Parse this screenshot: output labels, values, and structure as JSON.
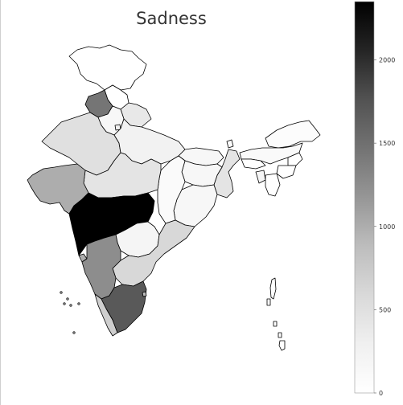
{
  "chart_data": {
    "type": "choropleth",
    "title": "Sadness",
    "colormap": "Greys",
    "colorbar": {
      "min": 0,
      "max": 2350,
      "ticks": [
        0,
        500,
        1000,
        1500,
        2000
      ],
      "tick_labels": [
        "0",
        "500",
        "1000",
        "1500",
        "2000"
      ]
    },
    "regions": [
      {
        "name": "Jammu and Kashmir",
        "value": 0
      },
      {
        "name": "Himachal Pradesh",
        "value": 0
      },
      {
        "name": "Punjab",
        "value": 1450
      },
      {
        "name": "Uttarakhand",
        "value": 400
      },
      {
        "name": "Haryana",
        "value": 150
      },
      {
        "name": "Delhi",
        "value": 300
      },
      {
        "name": "Rajasthan",
        "value": 500
      },
      {
        "name": "Uttar Pradesh",
        "value": 250
      },
      {
        "name": "Bihar",
        "value": 150
      },
      {
        "name": "Sikkim",
        "value": 50
      },
      {
        "name": "Arunachal Pradesh",
        "value": 50
      },
      {
        "name": "Assam",
        "value": 100
      },
      {
        "name": "Nagaland",
        "value": 0
      },
      {
        "name": "Manipur",
        "value": 0
      },
      {
        "name": "Mizoram",
        "value": 0
      },
      {
        "name": "Tripura",
        "value": 200
      },
      {
        "name": "Meghalaya",
        "value": 0
      },
      {
        "name": "West Bengal",
        "value": 450
      },
      {
        "name": "Jharkhand",
        "value": 150
      },
      {
        "name": "Odisha",
        "value": 150
      },
      {
        "name": "Chhattisgarh",
        "value": 100
      },
      {
        "name": "Madhya Pradesh",
        "value": 450
      },
      {
        "name": "Gujarat",
        "value": 1000
      },
      {
        "name": "Maharashtra",
        "value": 2350
      },
      {
        "name": "Telangana",
        "value": 200
      },
      {
        "name": "Andhra Pradesh",
        "value": 600
      },
      {
        "name": "Karnataka",
        "value": 1250
      },
      {
        "name": "Goa",
        "value": 1000
      },
      {
        "name": "Kerala",
        "value": 700
      },
      {
        "name": "Tamil Nadu",
        "value": 1700
      },
      {
        "name": "Puducherry",
        "value": 900
      },
      {
        "name": "Andaman and Nicobar Islands",
        "value": 0
      },
      {
        "name": "Lakshadweep",
        "value": 0
      }
    ]
  }
}
